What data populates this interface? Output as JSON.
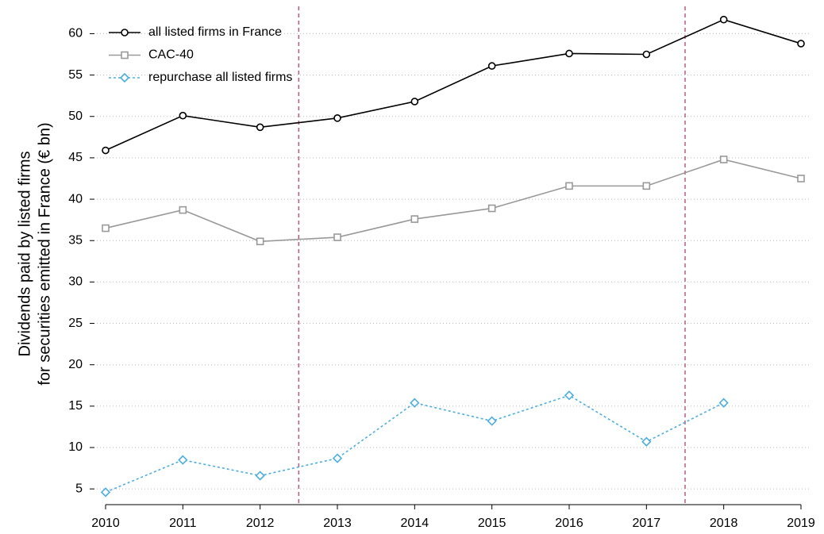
{
  "chart_data": {
    "type": "line",
    "y_label": [
      "Dividends paid by listed firms",
      "for securities emitted in France (€ bn)"
    ],
    "x": [
      2010,
      2011,
      2012,
      2013,
      2014,
      2015,
      2016,
      2017,
      2018,
      2019
    ],
    "series": [
      {
        "name": "all listed firms in France",
        "color": "#000000",
        "marker": "circle",
        "dash": "solid",
        "values": [
          45.9,
          50.1,
          48.7,
          49.8,
          51.8,
          56.1,
          57.6,
          57.5,
          61.7,
          58.8
        ]
      },
      {
        "name": "CAC-40",
        "color": "#999999",
        "marker": "square",
        "dash": "solid",
        "values": [
          36.5,
          38.7,
          34.9,
          35.4,
          37.6,
          38.9,
          41.6,
          41.6,
          44.8,
          42.5
        ]
      },
      {
        "name": "repurchase all listed firms",
        "color": "#4aaee0",
        "marker": "diamond",
        "dash": "dotted",
        "values": [
          4.6,
          8.5,
          6.6,
          8.7,
          15.4,
          13.2,
          16.3,
          10.7,
          15.4,
          null
        ]
      }
    ],
    "xlim": [
      2010,
      2019
    ],
    "xticks": [
      2010,
      2011,
      2012,
      2013,
      2014,
      2015,
      2016,
      2017,
      2018,
      2019
    ],
    "ylim": [
      3.1,
      63.3
    ],
    "yticks": [
      5,
      10,
      15,
      20,
      25,
      30,
      35,
      40,
      45,
      50,
      55,
      60
    ],
    "grid": true,
    "vlines": [
      2012.5,
      2017.5
    ],
    "vline_color": "#c0587e",
    "legend": "upper-left"
  }
}
